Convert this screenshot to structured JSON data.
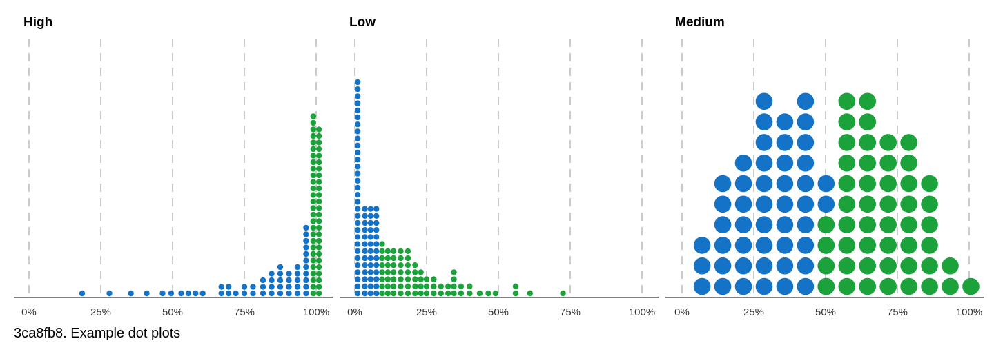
{
  "colors": {
    "blue": "#1473c7",
    "green": "#1ba23a",
    "grid": "#cccccc",
    "axis": "#555555"
  },
  "caption": "3ca8fb8. Example dot plots",
  "chart_data": [
    {
      "type": "scatter",
      "title": "High",
      "xlim": [
        0,
        100
      ],
      "x_ticks": [
        "0%",
        "25%",
        "50%",
        "75%",
        "100%"
      ],
      "grid": true,
      "series": [
        {
          "color": "blue",
          "stacks": [
            [
              18.5,
              1
            ],
            [
              28,
              1
            ],
            [
              35.5,
              1
            ],
            [
              41,
              1
            ],
            [
              46.5,
              1
            ],
            [
              49.5,
              1
            ],
            [
              53,
              1
            ],
            [
              55.5,
              1
            ],
            [
              58,
              1
            ],
            [
              60.5,
              1
            ],
            [
              67,
              2
            ],
            [
              69.5,
              2
            ],
            [
              72,
              1
            ],
            [
              75,
              2
            ],
            [
              78,
              2
            ],
            [
              81.5,
              3
            ],
            [
              84.5,
              4
            ],
            [
              87.5,
              5
            ],
            [
              90.5,
              4
            ],
            [
              93.5,
              5
            ],
            [
              96.5,
              11
            ]
          ]
        },
        {
          "color": "green",
          "stacks": [
            [
              99,
              28
            ],
            [
              101,
              26
            ]
          ]
        }
      ]
    },
    {
      "type": "scatter",
      "title": "Low",
      "xlim": [
        0,
        100
      ],
      "x_ticks": [
        "0%",
        "25%",
        "50%",
        "75%",
        "100%"
      ],
      "grid": true,
      "series": [
        {
          "color": "blue",
          "stacks": [
            [
              1,
              31
            ],
            [
              3.5,
              13
            ],
            [
              5.5,
              13
            ],
            [
              7.5,
              13
            ]
          ]
        },
        {
          "color": "green",
          "stacks": [
            [
              9.5,
              8
            ],
            [
              11.5,
              7
            ],
            [
              13.5,
              7
            ],
            [
              16,
              7
            ],
            [
              18.5,
              7
            ],
            [
              21,
              5
            ],
            [
              23,
              4
            ],
            [
              25,
              3
            ],
            [
              27.5,
              3
            ],
            [
              30,
              2
            ],
            [
              32.5,
              2
            ],
            [
              34.5,
              4
            ],
            [
              37,
              2
            ],
            [
              40,
              2
            ],
            [
              43.5,
              1
            ],
            [
              46.5,
              1
            ],
            [
              49,
              1
            ],
            [
              56,
              2
            ],
            [
              61,
              1
            ],
            [
              72.5,
              1
            ]
          ]
        }
      ]
    },
    {
      "type": "scatter",
      "title": "Medium",
      "xlim": [
        0,
        100
      ],
      "x_ticks": [
        "0%",
        "25%",
        "50%",
        "75%",
        "100%"
      ],
      "grid": true,
      "series": [
        {
          "color": "blue",
          "stacks": [
            [
              7,
              3
            ],
            [
              14.2,
              6
            ],
            [
              21.4,
              7
            ],
            [
              28.6,
              10
            ],
            [
              35.8,
              9
            ],
            [
              43,
              10
            ],
            [
              50.2,
              6
            ]
          ]
        },
        {
          "color": "green",
          "stacks": [
            [
              50.2,
              4
            ],
            [
              57.4,
              10
            ],
            [
              64.6,
              10
            ],
            [
              71.8,
              8
            ],
            [
              79,
              8
            ],
            [
              86.2,
              6
            ],
            [
              93.4,
              2
            ],
            [
              100.6,
              1
            ]
          ]
        }
      ]
    }
  ]
}
